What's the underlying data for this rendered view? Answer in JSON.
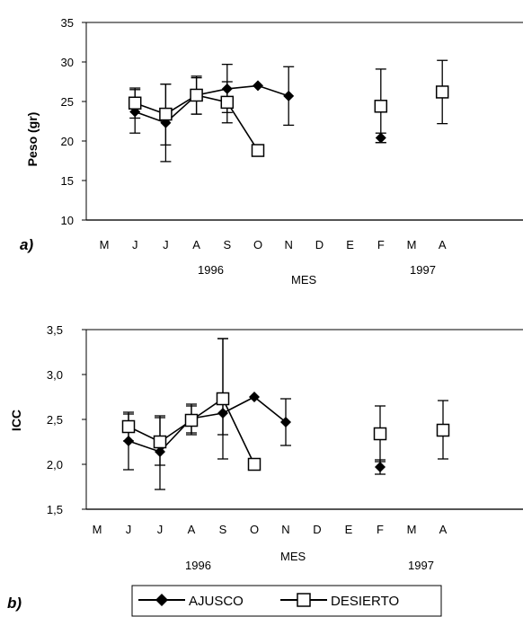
{
  "legend": {
    "series": [
      "AJUSCO",
      "DESIERTO"
    ]
  },
  "chart_data": [
    {
      "type": "line",
      "panel_label": "a)",
      "ylabel": "Peso (gr)",
      "xlabel": "MES",
      "ylim": [
        10,
        35
      ],
      "yticks": [
        "10",
        "15",
        "20",
        "25",
        "30",
        "35"
      ],
      "categories": [
        "M",
        "J",
        "J",
        "A",
        "S",
        "O",
        "N",
        "D",
        "E",
        "F",
        "M",
        "A"
      ],
      "year_labels": [
        "1996",
        "1997"
      ],
      "series": [
        {
          "name": "AJUSCO",
          "marker": "diamond-filled",
          "values": [
            null,
            23.7,
            22.3,
            25.8,
            26.6,
            27.0,
            25.7,
            null,
            null,
            20.4,
            null,
            null
          ],
          "err_low": [
            null,
            21.0,
            17.4,
            23.4,
            23.6,
            null,
            22.0,
            null,
            null,
            19.8,
            null,
            null
          ],
          "err_high": [
            null,
            26.5,
            27.2,
            28.2,
            29.7,
            null,
            29.4,
            null,
            null,
            21.0,
            null,
            null
          ]
        },
        {
          "name": "DESIERTO",
          "marker": "square-open",
          "values": [
            null,
            24.8,
            23.4,
            25.8,
            24.9,
            18.8,
            null,
            null,
            null,
            24.4,
            null,
            26.2
          ],
          "err_low": [
            null,
            22.9,
            19.5,
            23.4,
            22.3,
            null,
            null,
            null,
            null,
            19.8,
            null,
            22.2
          ],
          "err_high": [
            null,
            26.7,
            27.2,
            28.0,
            27.5,
            null,
            null,
            null,
            null,
            29.1,
            null,
            30.2
          ]
        }
      ]
    },
    {
      "type": "line",
      "panel_label": "b)",
      "ylabel": "ICC",
      "xlabel": "MES",
      "ylim": [
        1.5,
        3.5
      ],
      "yticks": [
        "1,5",
        "2,0",
        "2,5",
        "3,0",
        "3,5"
      ],
      "categories": [
        "M",
        "J",
        "J",
        "A",
        "S",
        "O",
        "N",
        "D",
        "E",
        "F",
        "M",
        "A"
      ],
      "year_labels": [
        "1996",
        "1997"
      ],
      "series": [
        {
          "name": "AJUSCO",
          "marker": "diamond-filled",
          "values": [
            null,
            2.26,
            2.14,
            2.51,
            2.57,
            2.75,
            2.47,
            null,
            null,
            1.97,
            null,
            null
          ],
          "err_low": [
            null,
            1.94,
            1.72,
            2.35,
            2.06,
            null,
            2.21,
            null,
            null,
            1.89,
            null,
            null
          ],
          "err_high": [
            null,
            2.56,
            2.54,
            2.67,
            3.4,
            null,
            2.73,
            null,
            null,
            2.05,
            null,
            null
          ]
        },
        {
          "name": "DESIERTO",
          "marker": "square-open",
          "values": [
            null,
            2.42,
            2.25,
            2.49,
            2.73,
            2.0,
            null,
            null,
            null,
            2.34,
            null,
            2.38
          ],
          "err_low": [
            null,
            2.26,
            1.99,
            2.33,
            2.33,
            null,
            null,
            null,
            null,
            2.03,
            null,
            2.06
          ],
          "err_high": [
            null,
            2.58,
            2.52,
            2.65,
            3.4,
            null,
            null,
            null,
            null,
            2.65,
            null,
            2.71
          ]
        }
      ]
    }
  ]
}
